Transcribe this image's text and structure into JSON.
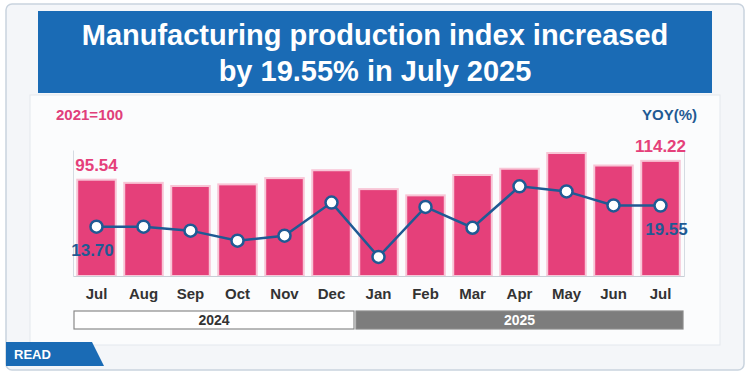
{
  "chart_data": {
    "type": "bar",
    "title": "Manufacturing production index increased\nby 19.55% in July 2025",
    "ylabel": "2021=100",
    "y2label": "YOY(%)",
    "source": "READ",
    "categories": [
      "Jul",
      "Aug",
      "Sep",
      "Oct",
      "Nov",
      "Dec",
      "Jan",
      "Feb",
      "Mar",
      "Apr",
      "May",
      "Jun",
      "Jul"
    ],
    "x_groups": [
      {
        "label": "2024",
        "count": 6
      },
      {
        "label": "2025",
        "count": 7
      }
    ],
    "ylim": [
      0,
      125
    ],
    "y2lim": [
      0,
      35
    ],
    "tick_labels": "x",
    "grid": false,
    "data_labels": true,
    "series": [
      {
        "type": "bar",
        "color": "#e5407a",
        "values": [
          95.54,
          92.4,
          89.3,
          90.9,
          97.1,
          104.9,
          86.2,
          80.0,
          100.2,
          106.4,
          122.0,
          109.6,
          114.22
        ],
        "value_labels": [
          "95.54",
          null,
          null,
          null,
          null,
          null,
          null,
          null,
          null,
          null,
          null,
          null,
          "114.22"
        ]
      },
      {
        "type": "line",
        "axis": "y2",
        "color": "#1f5a94",
        "marker": "circle",
        "line_style": "solid",
        "values": [
          13.7,
          13.7,
          12.6,
          9.8,
          11.2,
          20.4,
          5.3,
          19.2,
          13.4,
          24.9,
          23.5,
          19.6,
          19.55
        ],
        "value_labels": [
          "13.70",
          null,
          null,
          null,
          null,
          null,
          null,
          null,
          null,
          null,
          null,
          null,
          "19.55"
        ]
      }
    ]
  }
}
